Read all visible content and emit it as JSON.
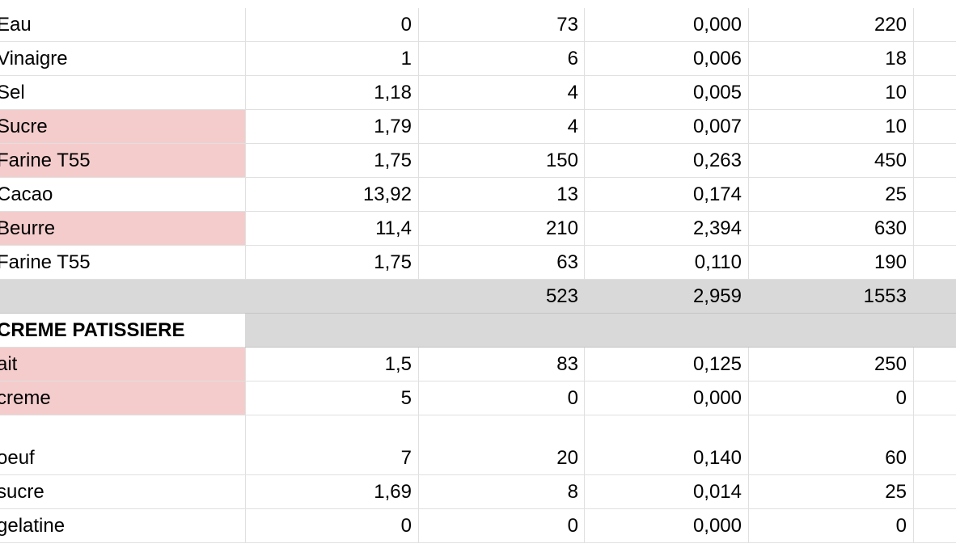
{
  "colors": {
    "highlight": "#f4cccc",
    "total_row": "#d9d9d9",
    "gridline": "#e0e0e0"
  },
  "rows": [
    {
      "name": "Eau",
      "price": "0",
      "qty": "73",
      "cost": "0,000",
      "total": "220"
    },
    {
      "name": "Vinaigre",
      "price": "1",
      "qty": "6",
      "cost": "0,006",
      "total": "18"
    },
    {
      "name": "Sel",
      "price": "1,18",
      "qty": "4",
      "cost": "0,005",
      "total": "10"
    },
    {
      "name": "Sucre",
      "price": "1,79",
      "qty": "4",
      "cost": "0,007",
      "total": "10"
    },
    {
      "name": "Farine T55",
      "price": "1,75",
      "qty": "150",
      "cost": "0,263",
      "total": "450"
    },
    {
      "name": "Cacao",
      "price": "13,92",
      "qty": "13",
      "cost": "0,174",
      "total": "25"
    },
    {
      "name": "Beurre",
      "price": "11,4",
      "qty": "210",
      "cost": "2,394",
      "total": "630"
    },
    {
      "name": "Farine T55",
      "price": "1,75",
      "qty": "63",
      "cost": "0,110",
      "total": "190"
    },
    {
      "name": "",
      "price": "",
      "qty": "523",
      "cost": "2,959",
      "total": "1553"
    },
    {
      "name": "CREME PATISSIERE",
      "price": "",
      "qty": "",
      "cost": "",
      "total": ""
    },
    {
      "name": "ait",
      "price": "1,5",
      "qty": "83",
      "cost": "0,125",
      "total": "250"
    },
    {
      "name": "creme",
      "price": "5",
      "qty": "0",
      "cost": "0,000",
      "total": "0"
    },
    {
      "name": "oeuf",
      "price": "7",
      "qty": "20",
      "cost": "0,140",
      "total": "60"
    },
    {
      "name": "sucre",
      "price": "1,69",
      "qty": "8",
      "cost": "0,014",
      "total": "25"
    },
    {
      "name": "gelatine",
      "price": "0",
      "qty": "0",
      "cost": "0,000",
      "total": "0"
    }
  ]
}
